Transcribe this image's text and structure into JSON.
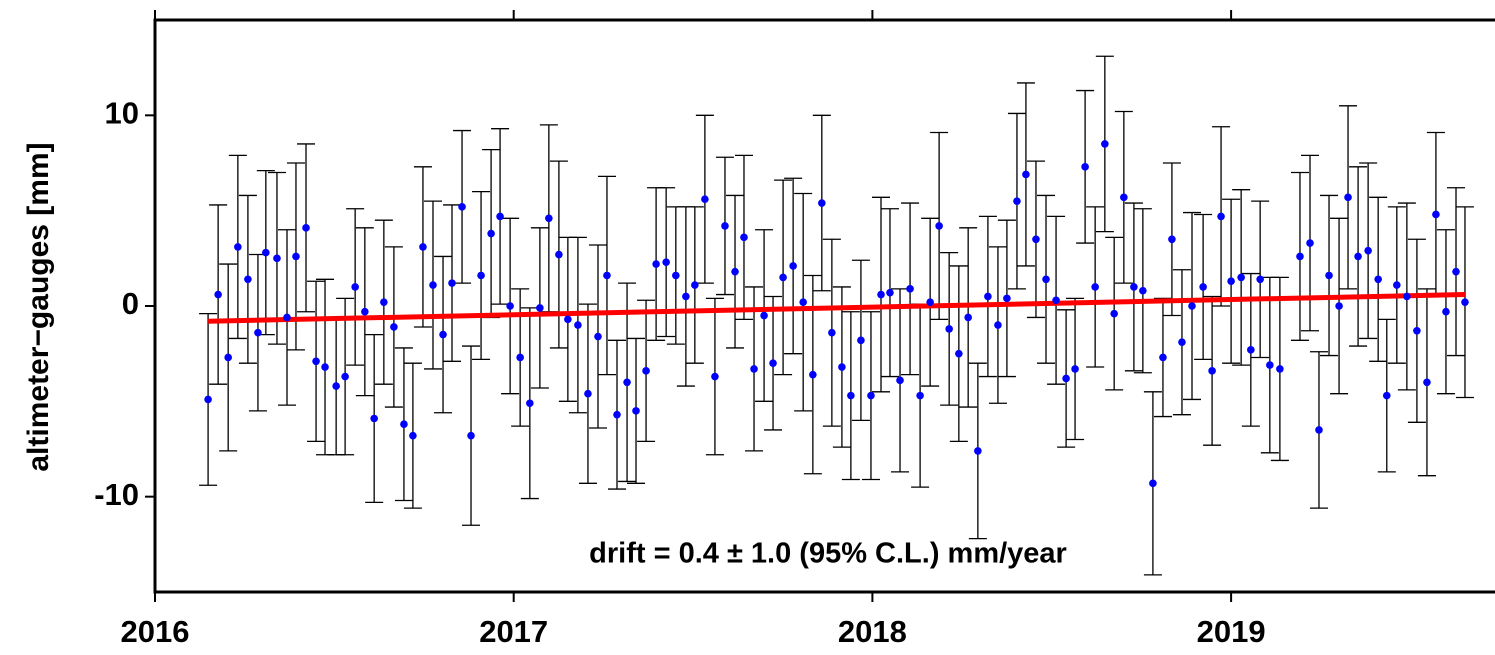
{
  "chart_data": {
    "type": "errorbar-scatter",
    "ylabel": "altimeter−gauges [mm]",
    "annotation": "drift = 0.4 ±  1.0 (95% C.L.) mm/year",
    "xlim": [
      2016,
      2019.736
    ],
    "xticks": [
      2016,
      2017,
      2018,
      2019
    ],
    "ylim": [
      -15,
      15
    ],
    "yticks": [
      -10,
      0,
      10
    ],
    "color": "#0000ff",
    "error_color": "#000000",
    "fit_color": "#ff0000",
    "x": [
      2016.148,
      2016.176,
      2016.204,
      2016.231,
      2016.259,
      2016.287,
      2016.309,
      2016.34,
      2016.368,
      2016.393,
      2016.421,
      2016.449,
      2016.474,
      2016.505,
      2016.53,
      2016.558,
      2016.585,
      2016.611,
      2016.638,
      2016.666,
      2016.694,
      2016.719,
      2016.747,
      2016.775,
      2016.803,
      2016.828,
      2016.856,
      2016.881,
      2016.909,
      2016.937,
      2016.962,
      2016.99,
      2017.018,
      2017.045,
      2017.073,
      2017.098,
      2017.126,
      2017.151,
      2017.179,
      2017.207,
      2017.235,
      2017.26,
      2017.288,
      2017.316,
      2017.341,
      2017.369,
      2017.397,
      2017.425,
      2017.452,
      2017.48,
      2017.505,
      2017.533,
      2017.561,
      2017.589,
      2017.617,
      2017.642,
      2017.67,
      2017.698,
      2017.723,
      2017.751,
      2017.779,
      2017.807,
      2017.834,
      2017.859,
      2017.887,
      2017.915,
      2017.94,
      2017.968,
      2017.996,
      2018.024,
      2018.049,
      2018.077,
      2018.105,
      2018.133,
      2018.161,
      2018.186,
      2018.214,
      2018.241,
      2018.267,
      2018.294,
      2018.322,
      2018.35,
      2018.375,
      2018.403,
      2018.428,
      2018.456,
      2018.484,
      2018.512,
      2018.54,
      2018.565,
      2018.593,
      2018.621,
      2018.648,
      2018.674,
      2018.701,
      2018.729,
      2018.754,
      2018.782,
      2018.81,
      2018.835,
      2018.863,
      2018.891,
      2018.922,
      2018.947,
      2018.972,
      2019.0,
      2019.028,
      2019.055,
      2019.081,
      2019.108,
      2019.136,
      2019.192,
      2019.22,
      2019.245,
      2019.273,
      2019.301,
      2019.326,
      2019.354,
      2019.382,
      2019.41,
      2019.434,
      2019.462,
      2019.49,
      2019.518,
      2019.546,
      2019.571,
      2019.599,
      2019.627,
      2019.652
    ],
    "values": [
      -4.9,
      0.6,
      -2.7,
      3.1,
      1.4,
      -1.4,
      2.8,
      2.5,
      -0.6,
      2.6,
      4.1,
      -2.9,
      -3.2,
      -4.2,
      -3.7,
      1.0,
      -0.3,
      -5.9,
      0.2,
      -1.1,
      -6.2,
      -6.8,
      3.1,
      1.1,
      -1.5,
      1.2,
      5.2,
      -6.8,
      1.6,
      3.8,
      4.7,
      0.0,
      -2.7,
      -5.1,
      -0.1,
      4.6,
      2.7,
      -0.7,
      -1.0,
      -4.6,
      -1.6,
      1.6,
      -5.7,
      -4.0,
      -5.5,
      -3.4,
      2.2,
      2.3,
      1.6,
      0.5,
      1.1,
      5.6,
      -3.7,
      4.2,
      1.8,
      3.6,
      -3.3,
      -0.5,
      -3.0,
      1.5,
      2.1,
      0.2,
      -3.6,
      5.4,
      -1.4,
      -3.2,
      -4.7,
      -1.8,
      -4.7,
      0.6,
      0.7,
      -3.9,
      0.9,
      -4.7,
      0.2,
      4.2,
      -1.2,
      -2.5,
      -0.6,
      -7.6,
      0.5,
      -1.0,
      0.4,
      5.5,
      6.9,
      3.5,
      1.4,
      0.3,
      -3.8,
      -3.3,
      7.3,
      1.0,
      8.5,
      -0.4,
      5.7,
      1.0,
      0.8,
      -9.3,
      -2.7,
      3.5,
      -1.9,
      0.0,
      1.0,
      -3.4,
      4.7,
      1.3,
      1.5,
      -2.3,
      1.4,
      -3.1,
      -3.3,
      2.6,
      3.3,
      -6.5,
      1.6,
      0.0,
      5.7,
      2.6,
      2.9,
      1.4,
      -4.7,
      1.1,
      0.5,
      -1.3,
      -4.0,
      4.8,
      -0.3,
      1.8,
      0.2
    ],
    "errors": [
      4.5,
      4.7,
      4.9,
      4.8,
      4.4,
      4.1,
      4.3,
      4.5,
      4.6,
      4.9,
      4.4,
      4.2,
      4.6,
      3.6,
      4.1,
      4.1,
      4.4,
      4.4,
      4.3,
      4.2,
      4.0,
      3.8,
      4.2,
      4.4,
      4.1,
      4.1,
      4.0,
      4.7,
      4.4,
      4.4,
      4.6,
      4.6,
      3.6,
      5.0,
      4.2,
      4.9,
      4.9,
      4.3,
      4.6,
      4.7,
      4.8,
      5.2,
      3.9,
      5.2,
      3.8,
      3.7,
      4.0,
      3.9,
      3.6,
      4.7,
      4.1,
      4.4,
      4.1,
      3.6,
      4.0,
      4.3,
      4.3,
      4.5,
      3.5,
      5.1,
      4.6,
      5.7,
      5.2,
      4.6,
      4.9,
      4.2,
      4.4,
      4.2,
      4.4,
      5.1,
      4.4,
      4.8,
      4.5,
      4.8,
      4.4,
      4.9,
      4.0,
      4.6,
      4.7,
      4.6,
      4.2,
      4.1,
      4.1,
      4.6,
      4.8,
      4.1,
      4.4,
      4.4,
      3.6,
      3.7,
      4.0,
      4.2,
      4.6,
      4.0,
      4.5,
      4.4,
      4.3,
      4.8,
      3.1,
      4.0,
      3.8,
      4.9,
      3.8,
      3.9,
      4.7,
      4.3,
      4.6,
      4.0,
      4.1,
      4.6,
      4.8,
      4.4,
      4.6,
      4.1,
      4.2,
      4.6,
      4.8,
      4.7,
      4.6,
      4.3,
      4.0,
      4.1,
      4.9,
      4.8,
      4.9,
      4.3,
      4.3,
      4.4,
      5.0
    ],
    "fit": {
      "x": [
        2016.148,
        2019.652
      ],
      "values": [
        -0.8,
        0.6
      ]
    }
  }
}
